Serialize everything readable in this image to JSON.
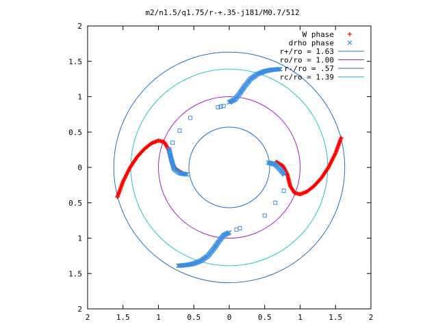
{
  "chart_data": {
    "type": "scatter",
    "title": "m2/n1.5/q1.75/r-+.35-j181/M0.7/512",
    "xlim": [
      -2,
      2
    ],
    "ylim": [
      -2,
      2
    ],
    "x_ticks": [
      -2,
      -1.5,
      -1,
      -0.5,
      0,
      0.5,
      1,
      1.5,
      2
    ],
    "y_ticks": [
      -2,
      -1.5,
      -1,
      -0.5,
      0,
      0.5,
      1,
      1.5,
      2
    ],
    "x_tick_labels": [
      "2",
      "1.5",
      "1",
      "0.5",
      "0",
      "0.5",
      "1",
      "1.5",
      "2"
    ],
    "y_tick_labels": [
      "2",
      "1.5",
      "1",
      "0.5",
      "0",
      "0.5",
      "1",
      "1.5",
      "2"
    ],
    "grid": false,
    "legend_position": "top-right",
    "series": [
      {
        "name": "W phase",
        "kind": "points",
        "marker": "plus",
        "color": "#ff0000",
        "arms": [
          [
            [
              -1.58,
              -0.42
            ],
            [
              -1.5,
              -0.2
            ],
            [
              -1.4,
              0.0
            ],
            [
              -1.3,
              0.15
            ],
            [
              -1.2,
              0.26
            ],
            [
              -1.1,
              0.34
            ],
            [
              -1.0,
              0.38
            ],
            [
              -0.92,
              0.36
            ],
            [
              -0.86,
              0.26
            ],
            [
              -0.82,
              0.1
            ],
            [
              -0.76,
              -0.02
            ],
            [
              -0.66,
              -0.08
            ]
          ],
          [
            [
              1.58,
              0.42
            ],
            [
              1.5,
              0.2
            ],
            [
              1.4,
              0.0
            ],
            [
              1.3,
              -0.15
            ],
            [
              1.2,
              -0.26
            ],
            [
              1.1,
              -0.34
            ],
            [
              1.0,
              -0.38
            ],
            [
              0.92,
              -0.36
            ],
            [
              0.86,
              -0.26
            ],
            [
              0.82,
              -0.1
            ],
            [
              0.76,
              0.02
            ],
            [
              0.66,
              0.08
            ]
          ]
        ]
      },
      {
        "name": "drho phase",
        "kind": "points",
        "marker": "cross",
        "color": "#3a8ee0",
        "arms": [
          [
            [
              -0.85,
              0.26
            ],
            [
              -0.82,
              0.12
            ],
            [
              -0.78,
              -0.02
            ],
            [
              -0.7,
              -0.08
            ],
            [
              -0.6,
              -0.1
            ]
          ],
          [
            [
              0.0,
              0.92
            ],
            [
              0.08,
              0.96
            ],
            [
              0.15,
              1.05
            ],
            [
              0.22,
              1.15
            ],
            [
              0.3,
              1.25
            ],
            [
              0.4,
              1.32
            ],
            [
              0.5,
              1.36
            ],
            [
              0.6,
              1.38
            ],
            [
              0.72,
              1.39
            ]
          ],
          [
            [
              0.55,
              0.07
            ],
            [
              0.65,
              0.04
            ],
            [
              0.72,
              -0.03
            ],
            [
              0.78,
              -0.1
            ]
          ],
          [
            [
              0.0,
              -0.92
            ],
            [
              -0.08,
              -0.96
            ],
            [
              -0.15,
              -1.05
            ],
            [
              -0.22,
              -1.15
            ],
            [
              -0.3,
              -1.25
            ],
            [
              -0.4,
              -1.32
            ],
            [
              -0.5,
              -1.36
            ],
            [
              -0.6,
              -1.38
            ],
            [
              -0.72,
              -1.39
            ]
          ]
        ],
        "scattered": [
          [
            -0.16,
            0.85
          ],
          [
            -0.12,
            0.86
          ],
          [
            -0.08,
            0.87
          ],
          [
            -0.55,
            0.7
          ],
          [
            -0.7,
            0.52
          ],
          [
            -0.8,
            0.35
          ],
          [
            0.65,
            -0.5
          ],
          [
            0.5,
            -0.68
          ],
          [
            0.77,
            -0.33
          ],
          [
            0.1,
            -0.88
          ],
          [
            0.15,
            -0.86
          ]
        ]
      },
      {
        "name": "r+/ro = 1.63",
        "kind": "circle",
        "radius": 1.63,
        "color": "#1f6fc0"
      },
      {
        "name": "ro/ro = 1.00",
        "kind": "circle",
        "radius": 1.0,
        "color": "#a020c0"
      },
      {
        "name": "r-/ro = .57",
        "kind": "circle",
        "radius": 0.57,
        "color": "#1f6fc0"
      },
      {
        "name": "rc/ro = 1.39",
        "kind": "circle",
        "radius": 1.39,
        "color": "#20c8c8"
      }
    ]
  }
}
